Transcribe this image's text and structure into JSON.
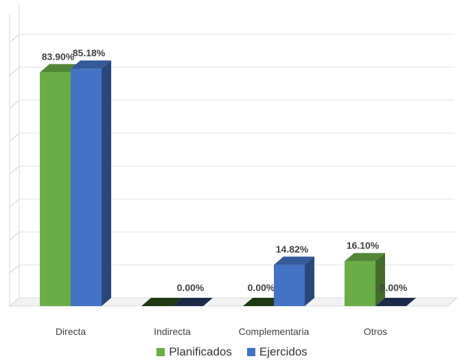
{
  "chart_data": {
    "type": "bar",
    "categories": [
      "Directa",
      "Indirecta",
      "Complementaria",
      "Otros"
    ],
    "series": [
      {
        "name": "Planificados",
        "values": [
          83.9,
          0.0,
          0.0,
          16.1
        ],
        "labels": [
          "83.90%",
          "",
          "0.00%",
          "16.10%"
        ],
        "color": "#6aad46"
      },
      {
        "name": "Ejercidos",
        "values": [
          85.18,
          0.0,
          14.82,
          0.0
        ],
        "labels": [
          "85.18%",
          "0.00%",
          "14.82%",
          "0.00%"
        ],
        "color": "#4472c4"
      }
    ],
    "ylim": [
      0,
      100
    ],
    "grid": true,
    "legend_position": "bottom",
    "style": "3d-column"
  }
}
